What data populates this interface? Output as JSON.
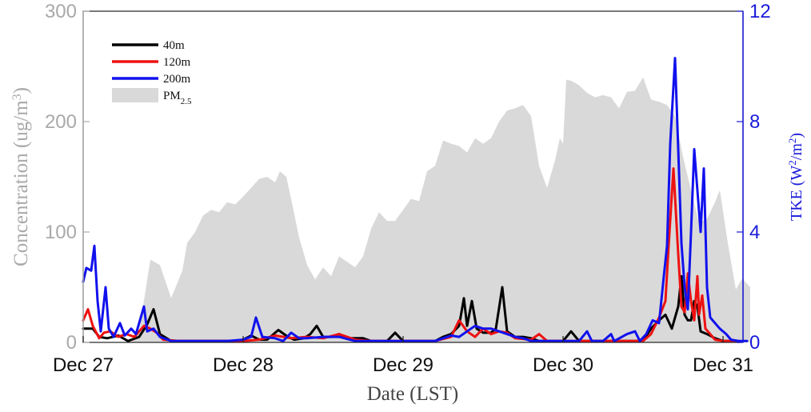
{
  "chart_data": {
    "type": "area+line",
    "xlabel": "Date (LST)",
    "ylabel_left": {
      "prefix": "Concentration (ug/m",
      "sup": "3",
      "suffix": ")"
    },
    "ylabel_right": {
      "prefix": "TKE (W",
      "sup1": "2",
      "mid": "/m",
      "sup2": "2",
      "suffix": ")"
    },
    "x_ticks": [
      "Dec 27",
      "Dec 28",
      "Dec 29",
      "Dec 30",
      "Dec 31"
    ],
    "x_unit": "days since Dec 27 00:00 LST",
    "xlim": [
      0,
      4.17
    ],
    "ylim_left": [
      0,
      300
    ],
    "ylim_right": [
      0,
      12
    ],
    "yticks_left": [
      "0",
      "100",
      "200",
      "300"
    ],
    "yticks_right": [
      "0",
      "4",
      "8",
      "12"
    ],
    "legend": {
      "position": "top-left",
      "entries": [
        {
          "label": "40m",
          "color": "#000000",
          "kind": "line"
        },
        {
          "label": "120m",
          "color": "#ee1111",
          "kind": "line"
        },
        {
          "label": "200m",
          "color": "#1111ee",
          "kind": "line"
        },
        {
          "label": "PM",
          "sub": "2.5",
          "color": "#d9d9d9",
          "kind": "area"
        }
      ]
    },
    "pm25": {
      "name": "PM2.5",
      "color": "#d9d9d9",
      "axis": "left",
      "points": [
        [
          0,
          0
        ],
        [
          0.3,
          0
        ],
        [
          0.35,
          10
        ],
        [
          0.42,
          75
        ],
        [
          0.48,
          70
        ],
        [
          0.55,
          40
        ],
        [
          0.62,
          65
        ],
        [
          0.65,
          90
        ],
        [
          0.7,
          100
        ],
        [
          0.75,
          115
        ],
        [
          0.8,
          120
        ],
        [
          0.85,
          118
        ],
        [
          0.9,
          127
        ],
        [
          0.95,
          125
        ],
        [
          1.0,
          132
        ],
        [
          1.05,
          140
        ],
        [
          1.1,
          148
        ],
        [
          1.15,
          150
        ],
        [
          1.2,
          145
        ],
        [
          1.23,
          155
        ],
        [
          1.27,
          150
        ],
        [
          1.3,
          130
        ],
        [
          1.35,
          95
        ],
        [
          1.4,
          70
        ],
        [
          1.45,
          57
        ],
        [
          1.5,
          68
        ],
        [
          1.55,
          60
        ],
        [
          1.6,
          78
        ],
        [
          1.65,
          73
        ],
        [
          1.7,
          68
        ],
        [
          1.75,
          78
        ],
        [
          1.8,
          103
        ],
        [
          1.85,
          118
        ],
        [
          1.9,
          110
        ],
        [
          1.95,
          110
        ],
        [
          2.0,
          120
        ],
        [
          2.05,
          130
        ],
        [
          2.1,
          128
        ],
        [
          2.15,
          155
        ],
        [
          2.2,
          160
        ],
        [
          2.25,
          183
        ],
        [
          2.3,
          180
        ],
        [
          2.35,
          178
        ],
        [
          2.4,
          172
        ],
        [
          2.45,
          185
        ],
        [
          2.5,
          180
        ],
        [
          2.55,
          185
        ],
        [
          2.6,
          200
        ],
        [
          2.65,
          210
        ],
        [
          2.7,
          212
        ],
        [
          2.75,
          215
        ],
        [
          2.8,
          205
        ],
        [
          2.85,
          160
        ],
        [
          2.9,
          140
        ],
        [
          2.95,
          165
        ],
        [
          2.98,
          185
        ],
        [
          3.0,
          180
        ],
        [
          3.02,
          238
        ],
        [
          3.05,
          237
        ],
        [
          3.1,
          233
        ],
        [
          3.15,
          226
        ],
        [
          3.2,
          222
        ],
        [
          3.25,
          224
        ],
        [
          3.3,
          222
        ],
        [
          3.35,
          212
        ],
        [
          3.4,
          227
        ],
        [
          3.45,
          228
        ],
        [
          3.5,
          240
        ],
        [
          3.55,
          220
        ],
        [
          3.6,
          218
        ],
        [
          3.65,
          215
        ],
        [
          3.7,
          205
        ],
        [
          3.75,
          168
        ],
        [
          3.8,
          138
        ],
        [
          3.85,
          108
        ],
        [
          3.9,
          112
        ],
        [
          3.95,
          127
        ],
        [
          3.98,
          138
        ],
        [
          4.03,
          90
        ],
        [
          4.08,
          48
        ],
        [
          4.12,
          58
        ],
        [
          4.17,
          50
        ],
        [
          4.17,
          0
        ]
      ]
    },
    "series": [
      {
        "name": "40m",
        "color": "#000000",
        "axis": "right",
        "points": [
          [
            0.0,
            0.5
          ],
          [
            0.06,
            0.5
          ],
          [
            0.1,
            0.2
          ],
          [
            0.15,
            0.15
          ],
          [
            0.22,
            0.25
          ],
          [
            0.28,
            0.05
          ],
          [
            0.35,
            0.2
          ],
          [
            0.4,
            0.65
          ],
          [
            0.44,
            1.2
          ],
          [
            0.48,
            0.3
          ],
          [
            0.55,
            0.05
          ],
          [
            0.65,
            0.05
          ],
          [
            0.75,
            0.05
          ],
          [
            0.85,
            0.05
          ],
          [
            0.95,
            0.05
          ],
          [
            1.0,
            0.1
          ],
          [
            1.05,
            0.25
          ],
          [
            1.1,
            0.1
          ],
          [
            1.15,
            0.1
          ],
          [
            1.22,
            0.45
          ],
          [
            1.28,
            0.2
          ],
          [
            1.32,
            0.1
          ],
          [
            1.38,
            0.15
          ],
          [
            1.42,
            0.3
          ],
          [
            1.46,
            0.6
          ],
          [
            1.5,
            0.2
          ],
          [
            1.55,
            0.2
          ],
          [
            1.6,
            0.3
          ],
          [
            1.65,
            0.15
          ],
          [
            1.7,
            0.15
          ],
          [
            1.75,
            0.15
          ],
          [
            1.8,
            0.05
          ],
          [
            1.9,
            0.05
          ],
          [
            1.95,
            0.35
          ],
          [
            2.0,
            0.05
          ],
          [
            2.1,
            0.05
          ],
          [
            2.2,
            0.05
          ],
          [
            2.25,
            0.2
          ],
          [
            2.3,
            0.3
          ],
          [
            2.35,
            0.6
          ],
          [
            2.38,
            1.6
          ],
          [
            2.4,
            0.6
          ],
          [
            2.43,
            1.5
          ],
          [
            2.46,
            0.5
          ],
          [
            2.5,
            0.35
          ],
          [
            2.55,
            0.35
          ],
          [
            2.58,
            0.5
          ],
          [
            2.62,
            2.0
          ],
          [
            2.65,
            0.4
          ],
          [
            2.7,
            0.2
          ],
          [
            2.75,
            0.2
          ],
          [
            2.8,
            0.15
          ],
          [
            2.85,
            0.05
          ],
          [
            2.95,
            0.05
          ],
          [
            3.0,
            0.05
          ],
          [
            3.05,
            0.4
          ],
          [
            3.1,
            0.05
          ],
          [
            3.2,
            0.05
          ],
          [
            3.3,
            0.05
          ],
          [
            3.4,
            0.05
          ],
          [
            3.5,
            0.05
          ],
          [
            3.55,
            0.5
          ],
          [
            3.6,
            0.8
          ],
          [
            3.64,
            1.0
          ],
          [
            3.68,
            0.5
          ],
          [
            3.72,
            1.3
          ],
          [
            3.74,
            2.4
          ],
          [
            3.76,
            1.0
          ],
          [
            3.78,
            0.8
          ],
          [
            3.8,
            0.8
          ],
          [
            3.82,
            1.5
          ],
          [
            3.84,
            1.3
          ],
          [
            3.86,
            0.4
          ],
          [
            3.9,
            0.3
          ],
          [
            3.95,
            0.15
          ],
          [
            4.0,
            0.05
          ],
          [
            4.05,
            0.05
          ],
          [
            4.1,
            0.02
          ]
        ]
      },
      {
        "name": "120m",
        "color": "#ee1111",
        "axis": "right",
        "points": [
          [
            0.0,
            0.8
          ],
          [
            0.03,
            1.2
          ],
          [
            0.06,
            0.6
          ],
          [
            0.1,
            0.15
          ],
          [
            0.13,
            0.35
          ],
          [
            0.17,
            0.4
          ],
          [
            0.22,
            0.2
          ],
          [
            0.27,
            0.3
          ],
          [
            0.32,
            0.2
          ],
          [
            0.38,
            0.6
          ],
          [
            0.42,
            0.5
          ],
          [
            0.46,
            0.35
          ],
          [
            0.5,
            0.1
          ],
          [
            0.6,
            0.05
          ],
          [
            0.8,
            0.05
          ],
          [
            1.0,
            0.05
          ],
          [
            1.1,
            0.1
          ],
          [
            1.2,
            0.25
          ],
          [
            1.3,
            0.15
          ],
          [
            1.4,
            0.2
          ],
          [
            1.5,
            0.15
          ],
          [
            1.6,
            0.3
          ],
          [
            1.7,
            0.1
          ],
          [
            1.8,
            0.05
          ],
          [
            2.0,
            0.05
          ],
          [
            2.2,
            0.05
          ],
          [
            2.3,
            0.2
          ],
          [
            2.35,
            0.8
          ],
          [
            2.4,
            0.4
          ],
          [
            2.45,
            0.2
          ],
          [
            2.5,
            0.5
          ],
          [
            2.55,
            0.3
          ],
          [
            2.6,
            0.4
          ],
          [
            2.65,
            0.35
          ],
          [
            2.7,
            0.15
          ],
          [
            2.8,
            0.1
          ],
          [
            2.85,
            0.3
          ],
          [
            2.9,
            0.05
          ],
          [
            3.0,
            0.05
          ],
          [
            3.2,
            0.05
          ],
          [
            3.4,
            0.05
          ],
          [
            3.5,
            0.05
          ],
          [
            3.55,
            0.3
          ],
          [
            3.6,
            0.9
          ],
          [
            3.64,
            1.5
          ],
          [
            3.66,
            3.5
          ],
          [
            3.69,
            6.3
          ],
          [
            3.72,
            3.2
          ],
          [
            3.74,
            1.3
          ],
          [
            3.76,
            1.1
          ],
          [
            3.78,
            2.5
          ],
          [
            3.8,
            1.5
          ],
          [
            3.82,
            0.8
          ],
          [
            3.84,
            2.4
          ],
          [
            3.85,
            1.0
          ],
          [
            3.87,
            1.7
          ],
          [
            3.89,
            0.5
          ],
          [
            3.92,
            0.3
          ],
          [
            3.95,
            0.1
          ],
          [
            4.0,
            0.05
          ],
          [
            4.1,
            0.05
          ]
        ]
      },
      {
        "name": "200m",
        "color": "#1111ee",
        "axis": "right",
        "points": [
          [
            0.0,
            2.2
          ],
          [
            0.02,
            2.7
          ],
          [
            0.05,
            2.6
          ],
          [
            0.07,
            3.5
          ],
          [
            0.09,
            1.5
          ],
          [
            0.11,
            0.4
          ],
          [
            0.14,
            2.0
          ],
          [
            0.16,
            0.5
          ],
          [
            0.19,
            0.2
          ],
          [
            0.23,
            0.7
          ],
          [
            0.26,
            0.25
          ],
          [
            0.3,
            0.5
          ],
          [
            0.33,
            0.3
          ],
          [
            0.38,
            1.3
          ],
          [
            0.4,
            0.4
          ],
          [
            0.44,
            0.5
          ],
          [
            0.48,
            0.2
          ],
          [
            0.55,
            0.05
          ],
          [
            0.7,
            0.05
          ],
          [
            0.9,
            0.05
          ],
          [
            1.0,
            0.1
          ],
          [
            1.05,
            0.2
          ],
          [
            1.08,
            0.9
          ],
          [
            1.12,
            0.2
          ],
          [
            1.2,
            0.15
          ],
          [
            1.25,
            0.05
          ],
          [
            1.3,
            0.35
          ],
          [
            1.35,
            0.15
          ],
          [
            1.4,
            0.15
          ],
          [
            1.5,
            0.2
          ],
          [
            1.6,
            0.2
          ],
          [
            1.7,
            0.05
          ],
          [
            1.8,
            0.05
          ],
          [
            2.0,
            0.05
          ],
          [
            2.2,
            0.05
          ],
          [
            2.3,
            0.25
          ],
          [
            2.35,
            0.2
          ],
          [
            2.4,
            0.4
          ],
          [
            2.45,
            0.6
          ],
          [
            2.5,
            0.5
          ],
          [
            2.55,
            0.5
          ],
          [
            2.6,
            0.4
          ],
          [
            2.65,
            0.3
          ],
          [
            2.7,
            0.2
          ],
          [
            2.75,
            0.15
          ],
          [
            2.8,
            0.05
          ],
          [
            2.9,
            0.05
          ],
          [
            3.0,
            0.05
          ],
          [
            3.1,
            0.05
          ],
          [
            3.15,
            0.4
          ],
          [
            3.18,
            0.05
          ],
          [
            3.25,
            0.05
          ],
          [
            3.3,
            0.3
          ],
          [
            3.32,
            0.05
          ],
          [
            3.4,
            0.3
          ],
          [
            3.45,
            0.4
          ],
          [
            3.48,
            0.05
          ],
          [
            3.52,
            0.3
          ],
          [
            3.56,
            0.8
          ],
          [
            3.6,
            0.7
          ],
          [
            3.63,
            2.4
          ],
          [
            3.65,
            3.5
          ],
          [
            3.67,
            7.2
          ],
          [
            3.7,
            10.3
          ],
          [
            3.72,
            7.0
          ],
          [
            3.74,
            3.6
          ],
          [
            3.76,
            2.0
          ],
          [
            3.78,
            1.2
          ],
          [
            3.8,
            4.0
          ],
          [
            3.82,
            7.0
          ],
          [
            3.84,
            5.5
          ],
          [
            3.86,
            4.0
          ],
          [
            3.88,
            6.3
          ],
          [
            3.9,
            2.0
          ],
          [
            3.92,
            0.9
          ],
          [
            3.95,
            0.7
          ],
          [
            3.98,
            0.5
          ],
          [
            4.02,
            0.3
          ],
          [
            4.05,
            0.1
          ],
          [
            4.1,
            0.05
          ],
          [
            4.15,
            0.05
          ]
        ]
      }
    ]
  }
}
